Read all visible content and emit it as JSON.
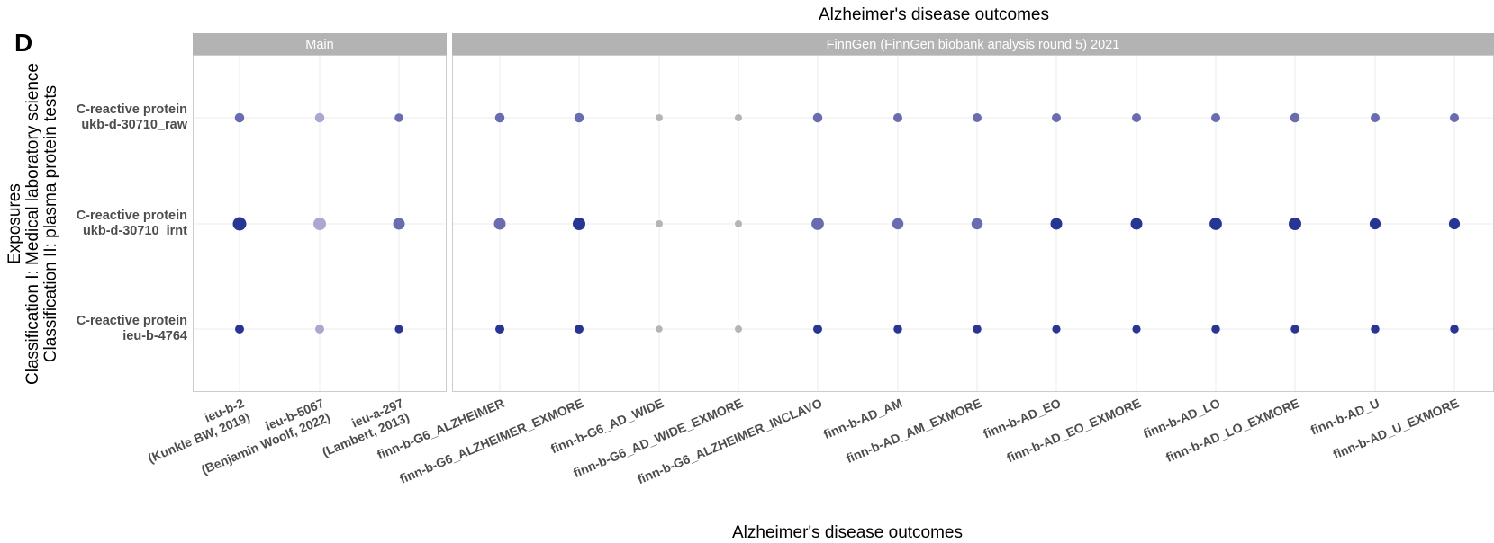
{
  "panel_label": "D",
  "title": "Alzheimer's disease outcomes",
  "chart_data": {
    "type": "scatter",
    "encoding": "dot plot; point size and fill darkness encode association strength",
    "title": "Alzheimer's disease outcomes",
    "xlabel": "Alzheimer's disease outcomes",
    "ylabel_lines": [
      "Exposures",
      "Classification I: Medical laboratory science",
      "Classification II: plasma protein tests"
    ],
    "facets": [
      {
        "label": "Main",
        "categories": [
          [
            "ieu-b-2",
            "(Kunkle BW, 2019)"
          ],
          [
            "ieu-b-5067",
            "(Benjamin Woolf, 2022)"
          ],
          [
            "ieu-a-297",
            "(Lambert, 2013)"
          ]
        ]
      },
      {
        "label": "FinnGen (FinnGen biobank analysis round 5) 2021",
        "categories": [
          [
            "finn-b-G6_ALZHEIMER"
          ],
          [
            "finn-b-G6_ALZHEIMER_EXMORE"
          ],
          [
            "finn-b-G6_AD_WIDE"
          ],
          [
            "finn-b-G6_AD_WIDE_EXMORE"
          ],
          [
            "finn-b-G6_ALZHEIMER_INCLAVO"
          ],
          [
            "finn-b-AD_AM"
          ],
          [
            "finn-b-AD_AM_EXMORE"
          ],
          [
            "finn-b-AD_EO"
          ],
          [
            "finn-b-AD_EO_EXMORE"
          ],
          [
            "finn-b-AD_LO"
          ],
          [
            "finn-b-AD_LO_EXMORE"
          ],
          [
            "finn-b-AD_U"
          ],
          [
            "finn-b-AD_U_EXMORE"
          ]
        ]
      }
    ],
    "rows": [
      [
        "C-reactive protein",
        "ukb-d-30710_raw"
      ],
      [
        "C-reactive protein",
        "ukb-d-30710_irnt"
      ],
      [
        "C-reactive protein",
        "ieu-b-4764"
      ]
    ],
    "points": [
      [
        [
          0.55,
          0.6
        ],
        [
          0.55,
          0.35
        ],
        [
          0.45,
          0.6
        ]
      ],
      [
        [
          0.55,
          0.6
        ],
        [
          0.55,
          0.6
        ],
        [
          0.3,
          0.1
        ],
        [
          0.3,
          0.1
        ],
        [
          0.55,
          0.6
        ],
        [
          0.5,
          0.6
        ],
        [
          0.5,
          0.6
        ],
        [
          0.5,
          0.6
        ],
        [
          0.5,
          0.6
        ],
        [
          0.5,
          0.6
        ],
        [
          0.55,
          0.6
        ],
        [
          0.5,
          0.6
        ],
        [
          0.5,
          0.6
        ]
      ],
      [
        [
          1.0,
          0.95
        ],
        [
          0.9,
          0.35
        ],
        [
          0.8,
          0.6
        ]
      ],
      [
        [
          0.8,
          0.6
        ],
        [
          0.9,
          0.95
        ],
        [
          0.3,
          0.1
        ],
        [
          0.3,
          0.1
        ],
        [
          0.88,
          0.6
        ],
        [
          0.75,
          0.6
        ],
        [
          0.75,
          0.6
        ],
        [
          0.8,
          0.95
        ],
        [
          0.8,
          0.95
        ],
        [
          0.88,
          0.95
        ],
        [
          0.9,
          0.95
        ],
        [
          0.72,
          0.9
        ],
        [
          0.72,
          0.9
        ]
      ],
      [
        [
          0.5,
          0.95
        ],
        [
          0.5,
          0.35
        ],
        [
          0.42,
          0.95
        ]
      ],
      [
        [
          0.5,
          0.95
        ],
        [
          0.5,
          0.95
        ],
        [
          0.25,
          0.1
        ],
        [
          0.3,
          0.1
        ],
        [
          0.5,
          0.95
        ],
        [
          0.45,
          0.95
        ],
        [
          0.45,
          0.95
        ],
        [
          0.42,
          0.95
        ],
        [
          0.42,
          0.95
        ],
        [
          0.45,
          0.95
        ],
        [
          0.45,
          0.95
        ],
        [
          0.45,
          0.95
        ],
        [
          0.45,
          0.95
        ]
      ]
    ],
    "colors": {
      "strip": "#b3b3b3",
      "panel_border": "#cccccc",
      "grid": "#ebebeb",
      "dark": "#283593",
      "mid": "#6a6cb0",
      "light": "#a8a8d0",
      "grey": "#b5b5b5",
      "axis_text": "#4d4d4d"
    },
    "grid": true
  }
}
